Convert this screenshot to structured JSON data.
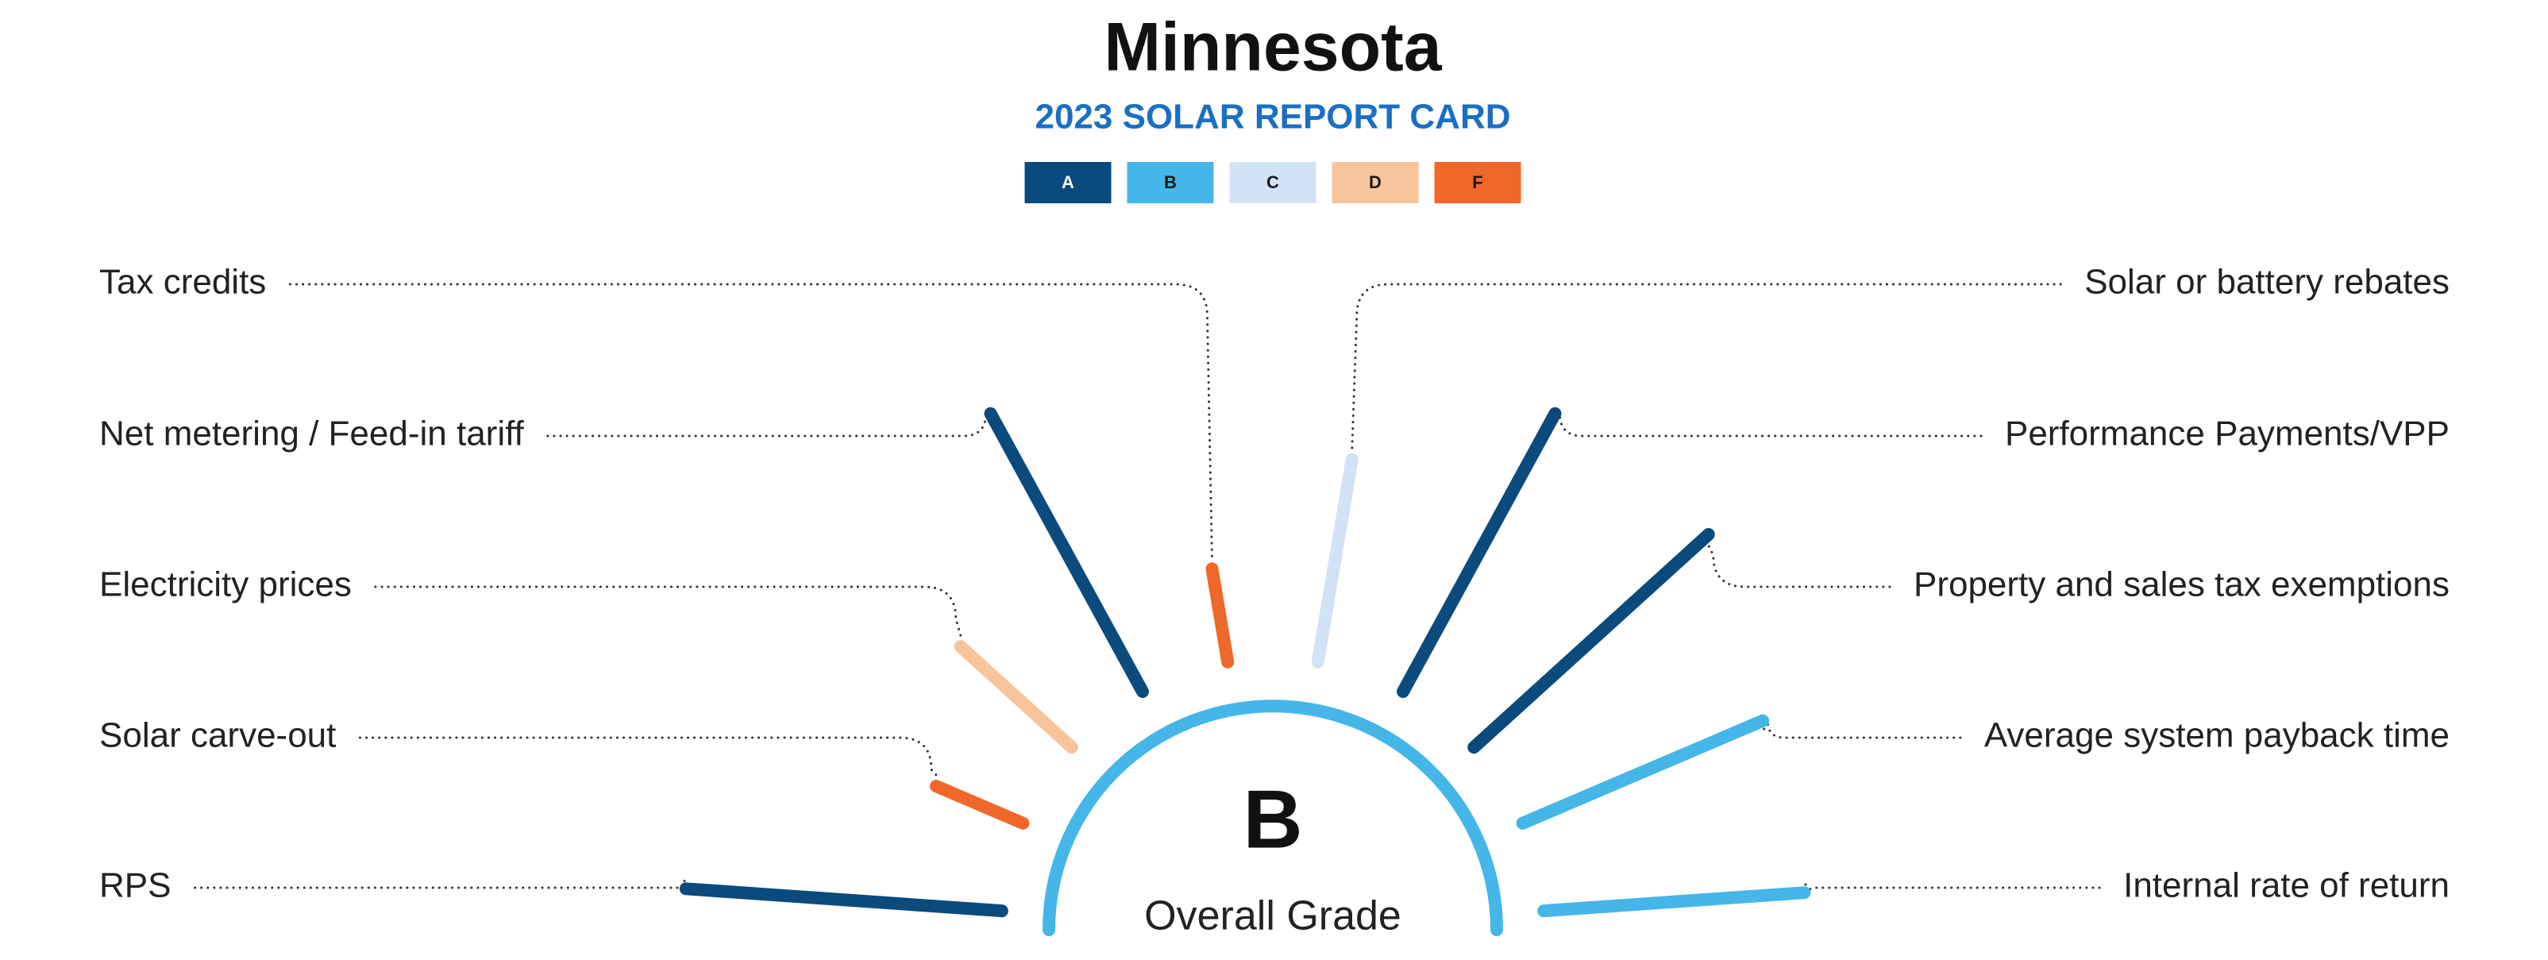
{
  "chart_data": {
    "type": "grade-rays",
    "title": "Minnesota",
    "subtitle": "2023 SOLAR REPORT CARD",
    "grades": [
      {
        "name": "A",
        "color": "#0b4a7c"
      },
      {
        "name": "B",
        "color": "#45b6e8"
      },
      {
        "name": "C",
        "color": "#d3e3f6"
      },
      {
        "name": "D",
        "color": "#f8c49c"
      },
      {
        "name": "F",
        "color": "#f0672a"
      }
    ],
    "categories": [
      "RPS",
      "Solar carve-out",
      "Electricity prices",
      "Net metering / Feed-in tariff",
      "Tax credits",
      "Solar or battery rebates",
      "Performance Payments/VPP",
      "Property and sales tax exemptions",
      "Average system payback time",
      "Internal rate of return"
    ],
    "values": [
      "A",
      "F",
      "D",
      "A",
      "F",
      "C",
      "A",
      "A",
      "B",
      "B"
    ],
    "overall": {
      "grade": "B",
      "label": "Overall Grade"
    }
  }
}
